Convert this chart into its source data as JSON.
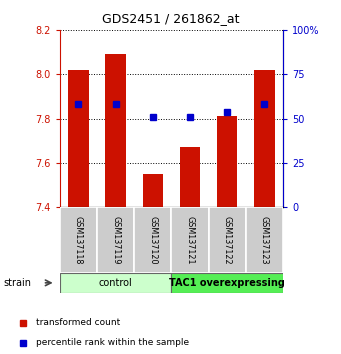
{
  "title": "GDS2451 / 261862_at",
  "samples": [
    "GSM137118",
    "GSM137119",
    "GSM137120",
    "GSM137121",
    "GSM137122",
    "GSM137123"
  ],
  "transformed_counts": [
    8.02,
    8.09,
    7.55,
    7.67,
    7.81,
    8.02
  ],
  "percentile_ranks": [
    58,
    58,
    51,
    51,
    54,
    58
  ],
  "bar_bottom": 7.4,
  "ylim_left": [
    7.4,
    8.2
  ],
  "ylim_right": [
    0,
    100
  ],
  "yticks_left": [
    7.4,
    7.6,
    7.8,
    8.0,
    8.2
  ],
  "yticks_right": [
    0,
    25,
    50,
    75,
    100
  ],
  "bar_color": "#cc1100",
  "dot_color": "#0000cc",
  "groups": [
    {
      "label": "control",
      "span": [
        0,
        2
      ],
      "color": "#ccffcc"
    },
    {
      "label": "TAC1 overexpressing",
      "span": [
        3,
        5
      ],
      "color": "#55ee55"
    }
  ],
  "strain_label": "strain",
  "legend_items": [
    {
      "color": "#cc1100",
      "label": "transformed count"
    },
    {
      "color": "#0000cc",
      "label": "percentile rank within the sample"
    }
  ],
  "left_tick_color": "#cc1100",
  "right_tick_color": "#0000cc",
  "tick_cell_bg": "#cccccc",
  "grid_color": "#000000"
}
